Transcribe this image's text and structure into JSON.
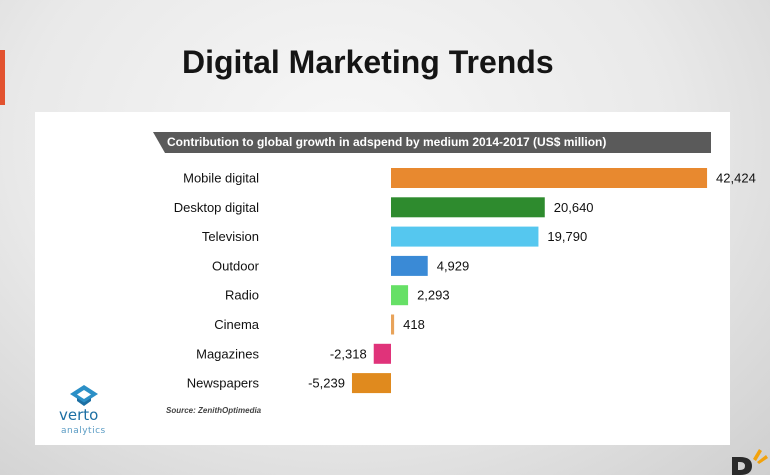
{
  "slide": {
    "title": "Digital Marketing Trends",
    "accent_color": "#e2522f"
  },
  "logo": {
    "name": "verto",
    "tagline": "analytics",
    "icon": "verto-diamond-icon",
    "color": "#1c6fa3"
  },
  "corner_badge": {
    "icon": "corner-brand-icon"
  },
  "chart_data": {
    "type": "bar",
    "orientation": "horizontal",
    "title": "Contribution to global growth in adspend by medium 2014-2017 (US$ million)",
    "categories": [
      "Mobile digital",
      "Desktop digital",
      "Television",
      "Outdoor",
      "Radio",
      "Cinema",
      "Magazines",
      "Newspapers"
    ],
    "values": [
      42424,
      20640,
      19790,
      4929,
      2293,
      418,
      -2318,
      -5239
    ],
    "value_labels": [
      "42,424",
      "20,640",
      "19,790",
      "4,929",
      "2,293",
      "418",
      "-2,318",
      "-5,239"
    ],
    "colors": [
      "#e8892f",
      "#2e8b2e",
      "#55c7ef",
      "#3a8ad6",
      "#66e066",
      "#e8a35a",
      "#e0337a",
      "#e08a1e"
    ],
    "grid": false,
    "legend": "none",
    "source": "Source: ZenithOptimedia"
  }
}
